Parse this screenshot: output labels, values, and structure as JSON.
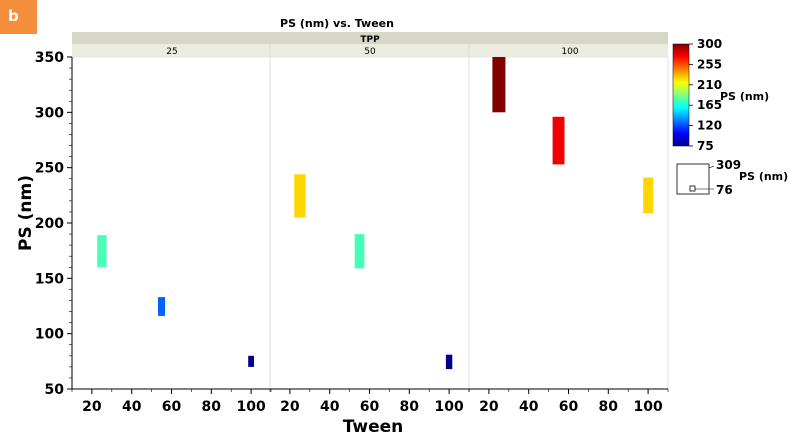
{
  "panel_label": "b",
  "chart_data": {
    "type": "bar",
    "title": "PS (nm) vs. Tween",
    "facet_title": "TPP",
    "facets": [
      "25",
      "50",
      "100"
    ],
    "xlabel": "Tween",
    "ylabel": "PS (nm)",
    "x_ticks": [
      "20",
      "40",
      "60",
      "80",
      "100"
    ],
    "y_ticks": [
      "50",
      "100",
      "150",
      "200",
      "250",
      "300",
      "350"
    ],
    "xlim": [
      10,
      110
    ],
    "ylim": [
      50,
      350
    ],
    "grid": false,
    "bars": [
      {
        "facet": "25",
        "x": 25,
        "low": 160,
        "high": 189,
        "value": 175
      },
      {
        "facet": "25",
        "x": 55,
        "low": 116,
        "high": 133,
        "value": 125
      },
      {
        "facet": "25",
        "x": 100,
        "low": 70,
        "high": 80,
        "value": 75
      },
      {
        "facet": "50",
        "x": 25,
        "low": 205,
        "high": 244,
        "value": 225
      },
      {
        "facet": "50",
        "x": 55,
        "low": 159,
        "high": 190,
        "value": 175
      },
      {
        "facet": "50",
        "x": 100,
        "low": 68,
        "high": 81,
        "value": 75
      },
      {
        "facet": "100",
        "x": 25,
        "low": 300,
        "high": 350,
        "value": 300
      },
      {
        "facet": "100",
        "x": 55,
        "low": 253,
        "high": 296,
        "value": 275
      },
      {
        "facet": "100",
        "x": 100,
        "low": 209,
        "high": 241,
        "value": 225
      }
    ],
    "color_legend": {
      "title": "PS (nm)",
      "ticks": [
        "300",
        "255",
        "210",
        "165",
        "120",
        "75"
      ],
      "range": [
        75,
        300
      ],
      "colormap": "jet"
    },
    "size_legend": {
      "title": "PS (nm)",
      "max_label": "309",
      "min_label": "76"
    }
  }
}
